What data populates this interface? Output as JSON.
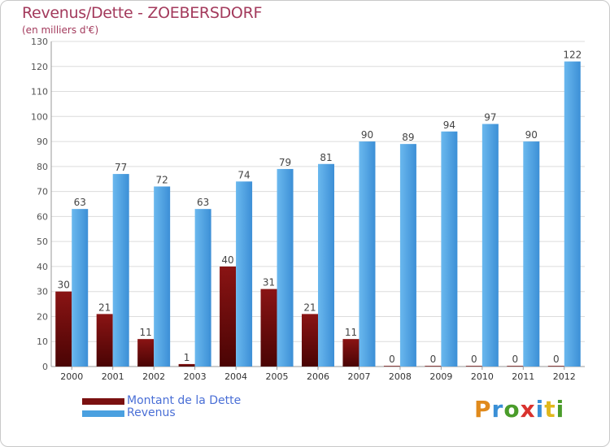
{
  "header": {
    "title": "Revenus/Dette - ZOEBERSDORF",
    "subtitle": "(en milliers d'€)"
  },
  "legend": [
    {
      "label": "Montant de la Dette",
      "color": "#7a1010"
    },
    {
      "label": "Revenus",
      "color": "#4aa0e0"
    }
  ],
  "logo": {
    "text": "Proxiti"
  },
  "colors": {
    "debt": "#7a1010",
    "revenue": "#4aa0e0",
    "title": "#a33a5c",
    "legend_text": "#4a6fd6"
  },
  "chart_data": {
    "type": "bar",
    "title": "Revenus/Dette - ZOEBERSDORF",
    "subtitle": "(en milliers d'€)",
    "categories": [
      "2000",
      "2001",
      "2002",
      "2003",
      "2004",
      "2005",
      "2006",
      "2007",
      "2008",
      "2009",
      "2010",
      "2011",
      "2012"
    ],
    "series": [
      {
        "name": "Montant de la Dette",
        "values": [
          30,
          21,
          11,
          1,
          40,
          31,
          21,
          11,
          0,
          0,
          0,
          0,
          0
        ]
      },
      {
        "name": "Revenus",
        "values": [
          63,
          77,
          72,
          63,
          74,
          79,
          81,
          90,
          89,
          94,
          97,
          90,
          122
        ]
      }
    ],
    "ylim": [
      0,
      130
    ],
    "yticks": [
      0,
      10,
      20,
      30,
      40,
      50,
      60,
      70,
      80,
      90,
      100,
      110,
      120,
      130
    ],
    "grid": true,
    "legend_position": "bottom-left"
  }
}
